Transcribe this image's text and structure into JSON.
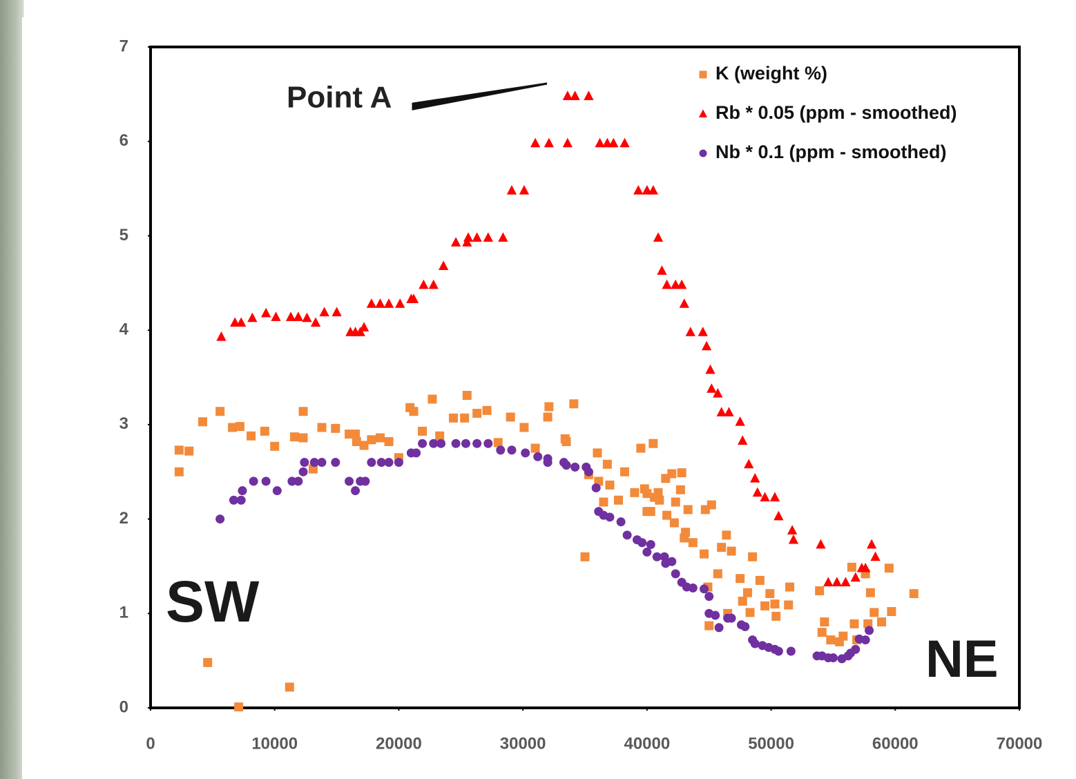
{
  "chart_data": {
    "type": "scatter",
    "annotations": {
      "point_a": "Point A",
      "left": "SW",
      "right": "NE"
    },
    "xlim": [
      0,
      70000
    ],
    "xticks": [
      0,
      10000,
      20000,
      30000,
      40000,
      50000,
      60000,
      70000
    ],
    "ylim": [
      0,
      7
    ],
    "yticks": [
      0,
      1,
      2,
      3,
      4,
      5,
      6,
      7
    ],
    "grid": false,
    "legend": "upper right",
    "series": [
      {
        "name": "K (weight %)",
        "color": "#f28a3a",
        "marker": "square",
        "x": [
          2300,
          2300,
          3100,
          4200,
          4600,
          5600,
          6600,
          7100,
          7200,
          8100,
          9200,
          10000,
          11200,
          11600,
          12300,
          12300,
          13100,
          13800,
          14900,
          16000,
          16500,
          16600,
          17200,
          17800,
          18500,
          19200,
          20000,
          20900,
          21200,
          21900,
          22700,
          23300,
          24400,
          25300,
          25500,
          26300,
          27100,
          28000,
          29000,
          30100,
          31000,
          32000,
          32100,
          33400,
          33500,
          34100,
          35000,
          35300,
          36000,
          36100,
          36500,
          36800,
          37000,
          37700,
          38200,
          39000,
          39500,
          39800,
          40000,
          40000,
          40300,
          40500,
          40600,
          40900,
          41000,
          41500,
          41600,
          42000,
          42200,
          42300,
          42700,
          42800,
          43000,
          43100,
          43300,
          43700,
          44600,
          44700,
          44900,
          45000,
          45200,
          45700,
          46000,
          46400,
          46500,
          46800,
          47500,
          47700,
          48100,
          48300,
          48500,
          49100,
          49500,
          49900,
          50300,
          50400,
          51400,
          51500,
          53900,
          54100,
          54300,
          54800,
          55500,
          55800,
          56500,
          56700,
          56900,
          57600,
          57800,
          58000,
          58300,
          58900,
          59500,
          59700,
          61500
        ],
        "values": [
          2.73,
          2.5,
          2.72,
          3.03,
          0.48,
          3.14,
          2.97,
          0.01,
          2.98,
          2.88,
          2.93,
          2.77,
          0.22,
          2.87,
          2.86,
          3.14,
          2.53,
          2.97,
          2.96,
          2.9,
          2.9,
          2.82,
          2.78,
          2.84,
          2.86,
          2.82,
          2.65,
          3.18,
          3.14,
          2.93,
          3.27,
          2.88,
          3.07,
          3.07,
          3.31,
          3.12,
          3.15,
          2.81,
          3.08,
          2.97,
          2.75,
          3.08,
          3.19,
          2.85,
          2.82,
          3.22,
          1.6,
          2.47,
          2.7,
          2.4,
          2.18,
          2.58,
          2.36,
          2.2,
          2.5,
          2.28,
          2.75,
          2.32,
          2.27,
          2.08,
          2.08,
          2.8,
          2.23,
          2.28,
          2.2,
          2.43,
          2.04,
          2.48,
          1.96,
          2.18,
          2.31,
          2.49,
          1.8,
          1.86,
          2.1,
          1.75,
          1.63,
          2.1,
          1.28,
          0.87,
          2.15,
          1.42,
          1.7,
          1.83,
          1.0,
          1.66,
          1.37,
          1.13,
          1.22,
          1.01,
          1.6,
          1.35,
          1.08,
          1.21,
          1.1,
          0.97,
          1.09,
          1.28,
          1.24,
          0.8,
          0.91,
          0.72,
          0.7,
          0.76,
          1.49,
          0.89,
          0.72,
          1.42,
          0.89,
          1.22,
          1.01,
          0.91,
          1.48,
          1.02,
          1.21
        ]
      },
      {
        "name": "Rb * 0.05 (ppm - smoothed)",
        "color": "#ff0000",
        "marker": "triangle",
        "x": [
          5700,
          6800,
          7300,
          8200,
          9300,
          10100,
          11300,
          11900,
          12600,
          13300,
          14000,
          15000,
          16100,
          16500,
          16900,
          17200,
          17800,
          18500,
          19200,
          20100,
          21000,
          21200,
          22000,
          22800,
          23600,
          24600,
          25500,
          25600,
          26300,
          27200,
          28400,
          29100,
          30100,
          31000,
          32100,
          33600,
          33600,
          34200,
          35300,
          36200,
          36800,
          37300,
          38200,
          39300,
          40000,
          40500,
          40900,
          41200,
          41600,
          42300,
          42800,
          43000,
          43500,
          44500,
          44800,
          45100,
          45200,
          45700,
          46000,
          46600,
          47500,
          47700,
          48200,
          48700,
          48900,
          49500,
          50300,
          50600,
          51700,
          51800,
          54000,
          54600,
          55300,
          56000,
          56800,
          57300,
          57600,
          58100,
          58400
        ],
        "values": [
          3.93,
          4.08,
          4.08,
          4.13,
          4.18,
          4.14,
          4.14,
          4.14,
          4.13,
          4.08,
          4.19,
          4.19,
          3.98,
          3.98,
          3.98,
          4.03,
          4.28,
          4.28,
          4.28,
          4.28,
          4.33,
          4.33,
          4.48,
          4.48,
          4.68,
          4.93,
          4.93,
          4.98,
          4.98,
          4.98,
          4.98,
          5.48,
          5.48,
          5.98,
          5.98,
          5.98,
          6.48,
          6.48,
          6.48,
          5.98,
          5.98,
          5.98,
          5.98,
          5.48,
          5.48,
          5.48,
          4.98,
          4.63,
          4.48,
          4.48,
          4.48,
          4.28,
          3.98,
          3.98,
          3.83,
          3.58,
          3.38,
          3.33,
          3.13,
          3.13,
          3.03,
          2.83,
          2.58,
          2.43,
          2.28,
          2.23,
          2.23,
          2.03,
          1.88,
          1.78,
          1.73,
          1.33,
          1.33,
          1.33,
          1.38,
          1.48,
          1.48,
          1.73,
          1.6
        ]
      },
      {
        "name": "Nb * 0.1 (ppm - smoothed)",
        "color": "#7030a0",
        "marker": "circle",
        "x": [
          5600,
          6700,
          7300,
          7400,
          8300,
          9300,
          10200,
          11400,
          11900,
          12300,
          12400,
          13200,
          13800,
          14900,
          16000,
          16500,
          16900,
          17300,
          17800,
          18600,
          19200,
          20000,
          21000,
          21400,
          21900,
          22800,
          23400,
          24600,
          25400,
          26300,
          27200,
          28200,
          29100,
          30200,
          31200,
          32000,
          32000,
          33300,
          33500,
          34200,
          35100,
          35300,
          35900,
          36100,
          36500,
          37000,
          37900,
          38400,
          39200,
          39600,
          40000,
          40300,
          40800,
          41400,
          41500,
          42000,
          42300,
          42800,
          43200,
          43700,
          44600,
          45000,
          45000,
          45500,
          45800,
          46500,
          46800,
          47600,
          47900,
          48500,
          48700,
          49300,
          49800,
          50300,
          50600,
          51600,
          53700,
          54100,
          54600,
          55000,
          55700,
          56200,
          56400,
          56800,
          57100,
          57600,
          57900
        ],
        "values": [
          2.0,
          2.2,
          2.2,
          2.3,
          2.4,
          2.4,
          2.3,
          2.4,
          2.4,
          2.5,
          2.6,
          2.6,
          2.6,
          2.6,
          2.4,
          2.3,
          2.4,
          2.4,
          2.6,
          2.6,
          2.6,
          2.6,
          2.7,
          2.7,
          2.8,
          2.8,
          2.8,
          2.8,
          2.8,
          2.8,
          2.8,
          2.73,
          2.73,
          2.7,
          2.66,
          2.64,
          2.6,
          2.6,
          2.57,
          2.55,
          2.55,
          2.5,
          2.33,
          2.08,
          2.04,
          2.02,
          1.97,
          1.83,
          1.78,
          1.75,
          1.65,
          1.73,
          1.6,
          1.6,
          1.53,
          1.55,
          1.42,
          1.33,
          1.28,
          1.27,
          1.26,
          1.18,
          1.0,
          0.98,
          0.85,
          0.95,
          0.95,
          0.88,
          0.86,
          0.72,
          0.68,
          0.66,
          0.64,
          0.62,
          0.6,
          0.6,
          0.55,
          0.55,
          0.53,
          0.53,
          0.52,
          0.55,
          0.58,
          0.62,
          0.73,
          0.72,
          0.82
        ]
      }
    ]
  }
}
